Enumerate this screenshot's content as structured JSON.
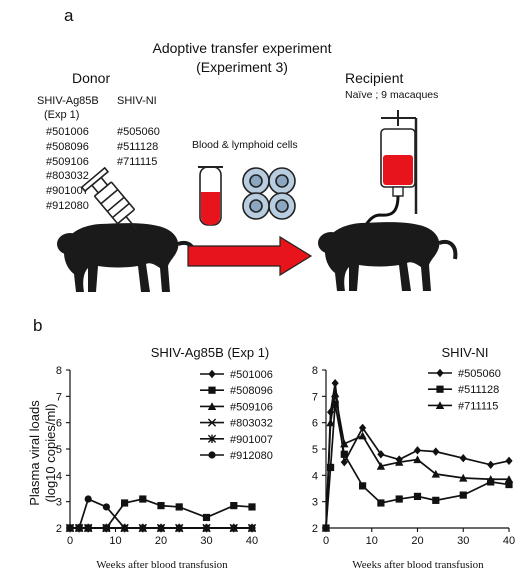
{
  "panel_a": {
    "label": "a",
    "title_line1": "Adoptive transfer experiment",
    "title_line2": "(Experiment 3)",
    "donor": {
      "heading": "Donor",
      "group1_line1": "SHIV-Ag85B",
      "group1_line2": "(Exp 1)",
      "group1_ids": [
        "#501006",
        "#508096",
        "#509106",
        "#803032",
        "#901007",
        "#912080"
      ],
      "group2": "SHIV-NI",
      "group2_ids": [
        "#505060",
        "#511128",
        "#711115"
      ]
    },
    "transfer_label": "Blood & lymphoid cells",
    "recipient": {
      "heading": "Recipient",
      "subtitle": "Naïve ; 9 macaques"
    },
    "colors": {
      "blood": "#e8141c",
      "arrow": "#e8141c",
      "cell": "#b8cde0",
      "monkey": "#1a1a1a"
    }
  },
  "panel_b": {
    "label": "b",
    "ylabel_line1": "Plasma viral loads",
    "ylabel_line2": "(log10 copies/ml)"
  },
  "chart_data": [
    {
      "type": "line",
      "title": "SHIV-Ag85B (Exp 1)",
      "xlabel": "Weeks after blood transfusion",
      "ylabel": "Plasma viral loads (log10 copies/ml)",
      "xlim": [
        0,
        40
      ],
      "ylim": [
        2,
        8
      ],
      "xticks": [
        0,
        10,
        20,
        30,
        40
      ],
      "yticks": [
        2,
        3,
        4,
        5,
        6,
        7,
        8
      ],
      "legend": "right",
      "grid": false,
      "series": [
        {
          "name": "#501006",
          "marker": "diamond",
          "x": [
            0,
            2,
            4,
            8,
            12,
            16,
            20,
            24,
            30,
            36,
            40
          ],
          "y": [
            2,
            2,
            2,
            2,
            2,
            2,
            2,
            2,
            2,
            2,
            2
          ]
        },
        {
          "name": "#508096",
          "marker": "square",
          "x": [
            0,
            2,
            4,
            8,
            12,
            16,
            20,
            24,
            30,
            36,
            40
          ],
          "y": [
            2,
            2,
            2,
            2,
            2.95,
            3.1,
            2.85,
            2.8,
            2.4,
            2.85,
            2.8
          ]
        },
        {
          "name": "#509106",
          "marker": "triangle",
          "x": [
            0,
            2,
            4,
            8,
            12,
            16,
            20,
            24,
            30,
            36,
            40
          ],
          "y": [
            2,
            2,
            2,
            2,
            2,
            2,
            2,
            2,
            2,
            2,
            2
          ]
        },
        {
          "name": "#803032",
          "marker": "x",
          "x": [
            0,
            2,
            4,
            8,
            12,
            16,
            20,
            24,
            30,
            36,
            40
          ],
          "y": [
            2,
            2,
            2,
            2,
            2,
            2,
            2,
            2,
            2,
            2,
            2
          ]
        },
        {
          "name": "#901007",
          "marker": "star",
          "x": [
            0,
            2,
            4,
            8,
            12,
            16,
            20,
            24,
            30,
            36,
            40
          ],
          "y": [
            2,
            2,
            2,
            2,
            2,
            2,
            2,
            2,
            2,
            2,
            2
          ]
        },
        {
          "name": "#912080",
          "marker": "circle",
          "x": [
            0,
            2,
            4,
            8,
            12,
            16,
            20,
            24,
            30,
            36,
            40
          ],
          "y": [
            2,
            2,
            3.1,
            2.8,
            2,
            2,
            2,
            2,
            2,
            2,
            2
          ]
        }
      ]
    },
    {
      "type": "line",
      "title": "SHIV-NI",
      "xlabel": "Weeks after blood transfusion",
      "ylabel": "",
      "xlim": [
        0,
        40
      ],
      "ylim": [
        2,
        8
      ],
      "xticks": [
        0,
        10,
        20,
        30,
        40
      ],
      "yticks": [
        2,
        3,
        4,
        5,
        6,
        7,
        8
      ],
      "legend": "top-right",
      "grid": false,
      "series": [
        {
          "name": "#505060",
          "marker": "diamond",
          "x": [
            0,
            1,
            2,
            4,
            8,
            12,
            16,
            20,
            24,
            30,
            36,
            40
          ],
          "y": [
            2,
            6.4,
            7.5,
            4.5,
            5.8,
            4.8,
            4.6,
            4.95,
            4.9,
            4.65,
            4.4,
            4.55
          ]
        },
        {
          "name": "#511128",
          "marker": "square",
          "x": [
            0,
            1,
            2,
            4,
            8,
            12,
            16,
            20,
            24,
            30,
            36,
            40
          ],
          "y": [
            2,
            4.3,
            6.7,
            4.8,
            3.6,
            2.95,
            3.1,
            3.2,
            3.05,
            3.25,
            3.75,
            3.65
          ]
        },
        {
          "name": "#711115",
          "marker": "triangle",
          "x": [
            0,
            1,
            2,
            4,
            8,
            12,
            16,
            20,
            24,
            30,
            36,
            40
          ],
          "y": [
            2,
            6.0,
            7.1,
            5.2,
            5.5,
            4.35,
            4.5,
            4.6,
            4.05,
            3.9,
            3.85,
            3.85
          ]
        }
      ]
    }
  ]
}
